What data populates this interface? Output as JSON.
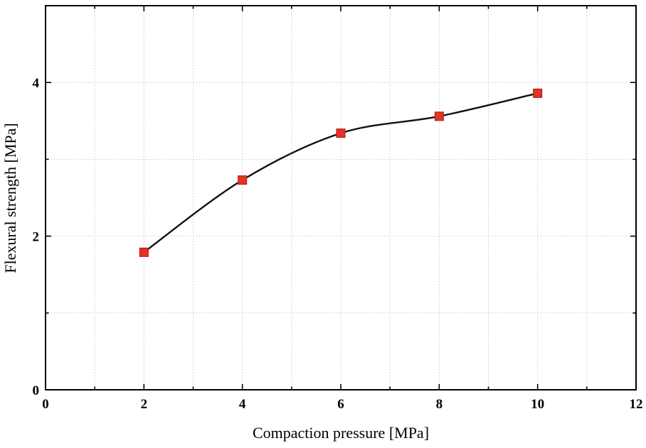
{
  "chart_data": {
    "type": "line",
    "series": [
      {
        "name": "Flexural strength",
        "x": [
          2,
          4,
          6,
          8,
          10
        ],
        "y": [
          1.79,
          2.73,
          3.34,
          3.56,
          3.86
        ]
      }
    ],
    "title": "",
    "xlabel": "Compaction pressure [MPa]",
    "ylabel": "Flexural strength [MPa]",
    "xlim": [
      0,
      12
    ],
    "ylim": [
      0,
      5
    ],
    "xticks": [
      0,
      2,
      4,
      6,
      8,
      10,
      12
    ],
    "yticks": [
      0,
      2,
      4
    ],
    "xtick_labels": [
      "0",
      "2",
      "4",
      "6",
      "8",
      "10",
      "12"
    ],
    "ytick_labels": [
      "0",
      "2",
      "4"
    ],
    "x_minor_step": 1,
    "y_minor_step": 1,
    "grid": "dotted",
    "legend": "none",
    "colors": {
      "line": "#111111",
      "marker_fill": "#e23327",
      "marker_edge": "#aa1810",
      "grid": "#c9c9c9",
      "axis": "#000000",
      "background": "#ffffff"
    },
    "marker": "square",
    "marker_size": 12
  }
}
